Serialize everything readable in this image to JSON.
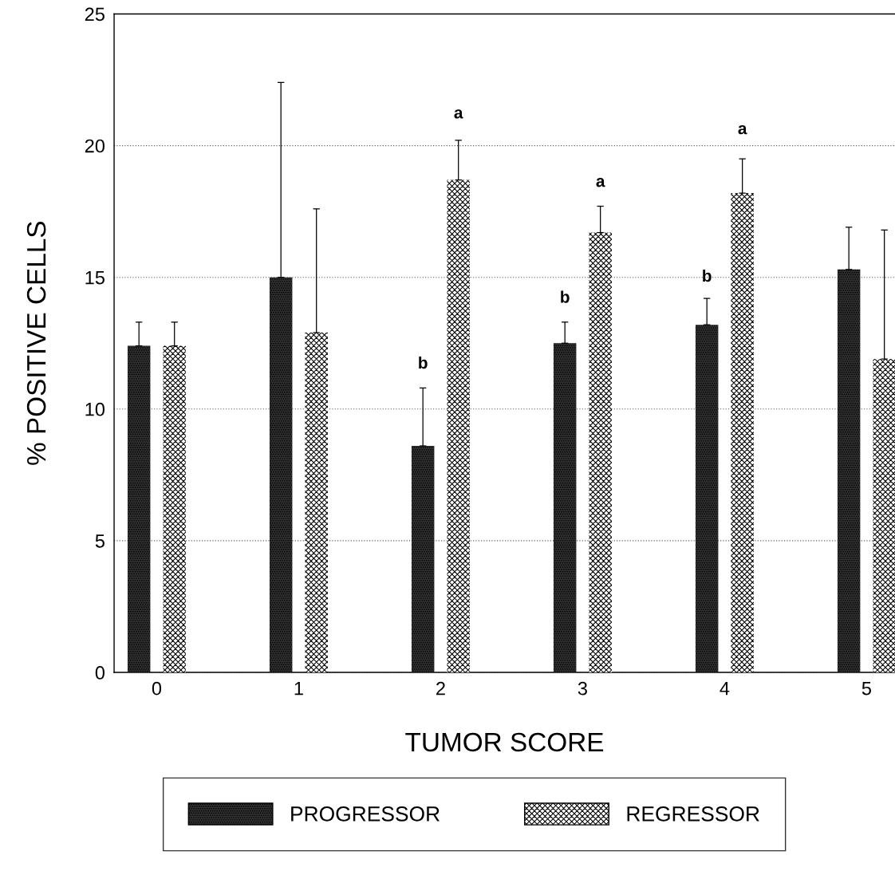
{
  "chart_data": {
    "type": "bar",
    "xlabel": "TUMOR SCORE",
    "ylabel": "% POSITIVE CELLS",
    "categories": [
      "0",
      "1",
      "2",
      "3",
      "4",
      "5"
    ],
    "series": [
      {
        "name": "PROGRESSOR",
        "color": "#303030",
        "values": [
          12.4,
          15.0,
          8.6,
          12.5,
          13.2,
          15.3
        ],
        "errors": [
          [
            12.4,
            13.3
          ],
          [
            15.0,
            22.4
          ],
          [
            8.6,
            10.8
          ],
          [
            12.5,
            13.3
          ],
          [
            13.2,
            14.2
          ],
          [
            15.3,
            16.9
          ]
        ]
      },
      {
        "name": "REGRESSOR",
        "color": "#ffffff",
        "values": [
          12.4,
          12.9,
          18.7,
          16.7,
          18.2,
          11.9
        ],
        "errors": [
          [
            12.4,
            13.3
          ],
          [
            12.9,
            17.6
          ],
          [
            18.7,
            20.2
          ],
          [
            16.7,
            17.7
          ],
          [
            18.2,
            19.5
          ],
          [
            11.9,
            16.8
          ]
        ]
      }
    ],
    "ylim": [
      0,
      25
    ],
    "yticks": [
      0,
      5,
      10,
      15,
      20,
      25
    ],
    "grid": "y",
    "legend": "bottom",
    "annotations": [
      "b",
      "a",
      "b",
      "a",
      "b",
      "a"
    ]
  }
}
